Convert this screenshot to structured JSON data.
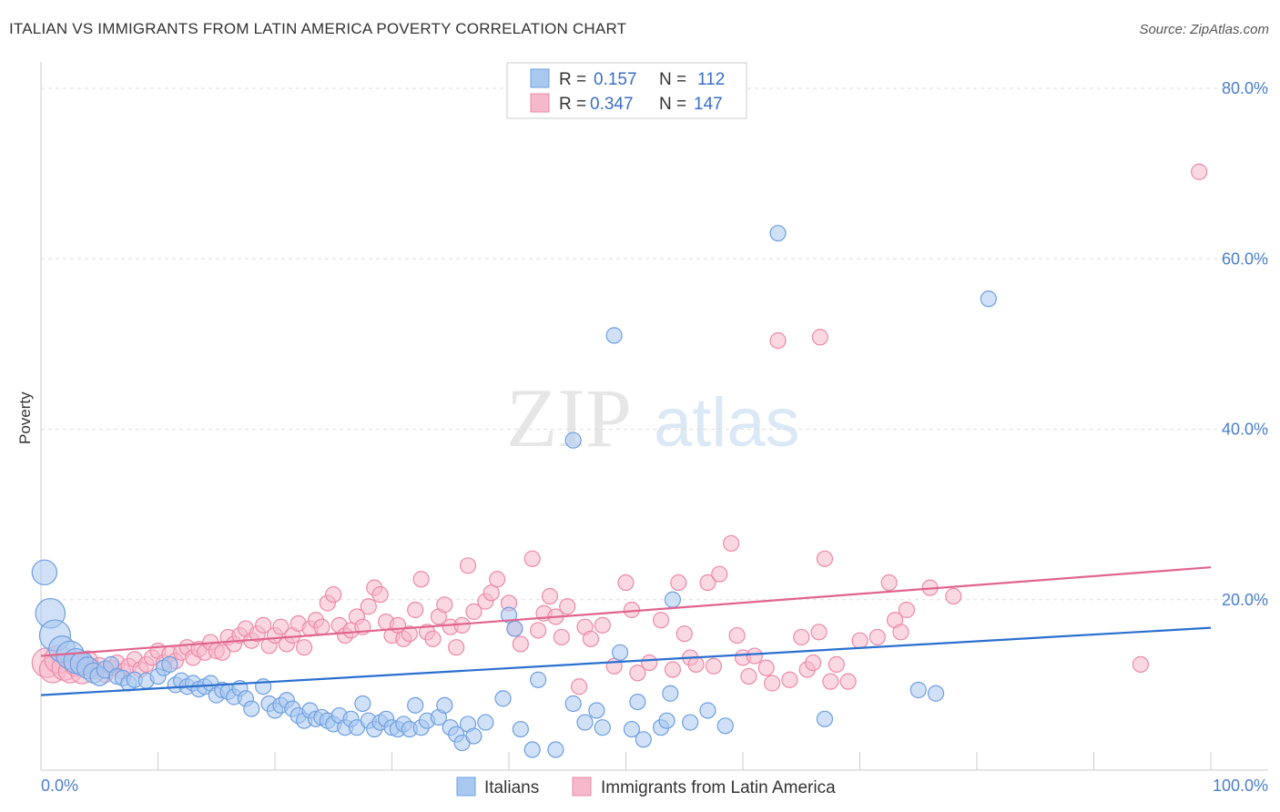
{
  "title": "ITALIAN VS IMMIGRANTS FROM LATIN AMERICA POVERTY CORRELATION CHART",
  "source": "Source: ZipAtlas.com",
  "watermark": {
    "zip": "ZIP",
    "atlas": "atlas"
  },
  "legend": {
    "series1": {
      "r_label": "R =",
      "r_value": "0.157",
      "n_label": "N =",
      "n_value": "112"
    },
    "series2": {
      "r_label": "R =",
      "r_value": "0.347",
      "n_label": "N =",
      "n_value": "147"
    }
  },
  "colors": {
    "blue_fill": "#a9c8f0",
    "blue_stroke": "#6d9fe0",
    "blue_line": "#2a6fcf",
    "pink_fill": "#f6b8cb",
    "pink_stroke": "#ec8aa8",
    "pink_line": "#e0648e",
    "grid": "#dddddd",
    "axis": "#cccccc",
    "tick_label": "#4a7fcf"
  },
  "chart_data": {
    "type": "scatter",
    "title": "ITALIAN VS IMMIGRANTS FROM LATIN AMERICA POVERTY CORRELATION CHART",
    "xlabel": "",
    "ylabel": "Poverty",
    "xlim": [
      0,
      100
    ],
    "ylim": [
      0,
      80
    ],
    "x_tick_labels": [
      "0.0%",
      "100.0%"
    ],
    "y_ticks": [
      20,
      40,
      60,
      80
    ],
    "y_tick_labels": [
      "20.0%",
      "40.0%",
      "60.0%",
      "80.0%"
    ],
    "grid": true,
    "legend_position": "top-center",
    "series": [
      {
        "name": "Italians",
        "color": "#a9c8f0",
        "trend": {
          "x": [
            0,
            100
          ],
          "y": [
            8.8,
            16.7
          ]
        },
        "points": [
          [
            0.3,
            23.2,
            1.6
          ],
          [
            0.8,
            18.4,
            1.9
          ],
          [
            1.2,
            15.8,
            2.0
          ],
          [
            1.8,
            14.2,
            1.7
          ],
          [
            2.5,
            13.5,
            1.8
          ],
          [
            3.0,
            12.8,
            1.6
          ],
          [
            3.5,
            12.5,
            1.5
          ],
          [
            4.0,
            12.0,
            1.4
          ],
          [
            4.5,
            11.4,
            1.3
          ],
          [
            5.0,
            11.0,
            1.2
          ],
          [
            5.5,
            11.8,
            1.1
          ],
          [
            6.0,
            12.4,
            1.0
          ],
          [
            6.5,
            11.0,
            1.0
          ],
          [
            7.0,
            10.8,
            1.0
          ],
          [
            7.5,
            10.2,
            1.0
          ],
          [
            8.0,
            10.6,
            1.0
          ],
          [
            9.0,
            10.5,
            1.0
          ],
          [
            10.0,
            11.0,
            1.0
          ],
          [
            10.5,
            12.0,
            1.0
          ],
          [
            11.0,
            12.4,
            1.0
          ],
          [
            11.5,
            10.0,
            1.0
          ],
          [
            12.0,
            10.5,
            1.0
          ],
          [
            12.5,
            9.8,
            1.0
          ],
          [
            13.0,
            10.2,
            1.0
          ],
          [
            13.5,
            9.5,
            1.0
          ],
          [
            14.0,
            9.8,
            1.0
          ],
          [
            14.5,
            10.2,
            1.0
          ],
          [
            15.0,
            8.8,
            1.0
          ],
          [
            15.5,
            9.4,
            1.0
          ],
          [
            16.0,
            9.2,
            1.0
          ],
          [
            16.5,
            8.6,
            1.0
          ],
          [
            17.0,
            9.6,
            1.0
          ],
          [
            17.5,
            8.4,
            1.0
          ],
          [
            18.0,
            7.2,
            1.0
          ],
          [
            19.0,
            9.8,
            1.0
          ],
          [
            19.5,
            7.8,
            1.0
          ],
          [
            20.0,
            7.0,
            1.0
          ],
          [
            20.5,
            7.6,
            1.0
          ],
          [
            21.0,
            8.2,
            1.0
          ],
          [
            21.5,
            7.2,
            1.0
          ],
          [
            22.0,
            6.4,
            1.0
          ],
          [
            22.5,
            5.8,
            1.0
          ],
          [
            23.0,
            7.0,
            1.0
          ],
          [
            23.5,
            6.0,
            1.0
          ],
          [
            24.0,
            6.2,
            1.0
          ],
          [
            24.5,
            5.8,
            1.0
          ],
          [
            25.0,
            5.4,
            1.0
          ],
          [
            25.5,
            6.4,
            1.0
          ],
          [
            26.0,
            5.0,
            1.0
          ],
          [
            26.5,
            6.0,
            1.0
          ],
          [
            27.0,
            5.0,
            1.0
          ],
          [
            27.5,
            7.8,
            1.0
          ],
          [
            28.0,
            5.8,
            1.0
          ],
          [
            28.5,
            4.8,
            1.0
          ],
          [
            29.0,
            5.6,
            1.0
          ],
          [
            29.5,
            6.0,
            1.0
          ],
          [
            30.0,
            5.0,
            1.0
          ],
          [
            30.5,
            4.8,
            1.0
          ],
          [
            31.0,
            5.4,
            1.0
          ],
          [
            31.5,
            4.8,
            1.0
          ],
          [
            32.0,
            7.6,
            1.0
          ],
          [
            32.5,
            5.0,
            1.0
          ],
          [
            33.0,
            5.8,
            1.0
          ],
          [
            34.0,
            6.2,
            1.0
          ],
          [
            34.5,
            7.6,
            1.0
          ],
          [
            35.0,
            5.0,
            1.0
          ],
          [
            35.5,
            4.2,
            1.0
          ],
          [
            36.0,
            3.2,
            1.0
          ],
          [
            36.5,
            5.4,
            1.0
          ],
          [
            37.0,
            4.0,
            1.0
          ],
          [
            38.0,
            5.6,
            1.0
          ],
          [
            39.5,
            8.4,
            1.0
          ],
          [
            40.0,
            18.2,
            1.0
          ],
          [
            40.5,
            16.6,
            1.0
          ],
          [
            41.0,
            4.8,
            1.0
          ],
          [
            42.0,
            2.4,
            1.0
          ],
          [
            42.5,
            10.6,
            1.0
          ],
          [
            44.0,
            2.4,
            1.0
          ],
          [
            45.5,
            7.8,
            1.0
          ],
          [
            46.5,
            5.6,
            1.0
          ],
          [
            47.5,
            7.0,
            1.0
          ],
          [
            48.0,
            5.0,
            1.0
          ],
          [
            49.0,
            51.0,
            1.0
          ],
          [
            49.5,
            13.8,
            1.0
          ],
          [
            50.5,
            4.8,
            1.0
          ],
          [
            51.0,
            8.0,
            1.0
          ],
          [
            51.5,
            3.6,
            1.0
          ],
          [
            53.0,
            5.0,
            1.0
          ],
          [
            53.5,
            5.8,
            1.0
          ],
          [
            53.8,
            9.0,
            1.0
          ],
          [
            54.0,
            20.0,
            1.0
          ],
          [
            55.5,
            5.6,
            1.0
          ],
          [
            57.0,
            7.0,
            1.0
          ],
          [
            58.5,
            5.2,
            1.0
          ],
          [
            63.0,
            63.0,
            1.0
          ],
          [
            67.0,
            6.0,
            1.0
          ],
          [
            81.0,
            55.3,
            1.0
          ],
          [
            75.0,
            9.4,
            1.0
          ],
          [
            76.5,
            9.0,
            1.0
          ],
          [
            45.5,
            38.7,
            1.0
          ]
        ]
      },
      {
        "name": "Immigrants from Latin America",
        "color": "#f6b8cb",
        "trend": {
          "x": [
            0,
            100
          ],
          "y": [
            13.4,
            23.8
          ]
        },
        "points": [
          [
            0.5,
            12.6,
            1.9
          ],
          [
            1.0,
            11.8,
            1.7
          ],
          [
            1.5,
            13.0,
            1.8
          ],
          [
            2.0,
            12.0,
            1.6
          ],
          [
            2.5,
            11.6,
            1.5
          ],
          [
            3.0,
            12.4,
            1.5
          ],
          [
            3.5,
            11.4,
            1.4
          ],
          [
            4.0,
            12.8,
            1.3
          ],
          [
            4.5,
            11.8,
            1.2
          ],
          [
            5.0,
            12.2,
            1.1
          ],
          [
            5.5,
            11.2,
            1.0
          ],
          [
            6.0,
            12.0,
            1.0
          ],
          [
            6.5,
            12.6,
            1.0
          ],
          [
            7.0,
            11.6,
            1.0
          ],
          [
            7.5,
            12.2,
            1.0
          ],
          [
            8.0,
            13.0,
            1.0
          ],
          [
            8.5,
            11.8,
            1.0
          ],
          [
            9.0,
            12.4,
            1.0
          ],
          [
            9.5,
            13.2,
            1.0
          ],
          [
            10.0,
            14.0,
            1.0
          ],
          [
            10.5,
            12.6,
            1.0
          ],
          [
            11.0,
            13.6,
            1.0
          ],
          [
            11.5,
            12.8,
            1.0
          ],
          [
            12.0,
            13.8,
            1.0
          ],
          [
            12.5,
            14.4,
            1.0
          ],
          [
            13.0,
            13.2,
            1.0
          ],
          [
            13.5,
            14.2,
            1.0
          ],
          [
            14.0,
            13.8,
            1.0
          ],
          [
            14.5,
            15.0,
            1.0
          ],
          [
            15.0,
            14.0,
            1.0
          ],
          [
            15.5,
            13.8,
            1.0
          ],
          [
            16.0,
            15.6,
            1.0
          ],
          [
            16.5,
            14.8,
            1.0
          ],
          [
            17.0,
            15.8,
            1.0
          ],
          [
            17.5,
            16.6,
            1.0
          ],
          [
            18.0,
            15.2,
            1.0
          ],
          [
            18.5,
            16.0,
            1.0
          ],
          [
            19.0,
            17.0,
            1.0
          ],
          [
            19.5,
            14.6,
            1.0
          ],
          [
            20.0,
            15.8,
            1.0
          ],
          [
            20.5,
            16.8,
            1.0
          ],
          [
            21.0,
            14.8,
            1.0
          ],
          [
            21.5,
            15.8,
            1.0
          ],
          [
            22.0,
            17.2,
            1.0
          ],
          [
            22.5,
            14.4,
            1.0
          ],
          [
            23.0,
            16.6,
            1.0
          ],
          [
            23.5,
            17.6,
            1.0
          ],
          [
            24.0,
            16.8,
            1.0
          ],
          [
            24.5,
            19.6,
            1.0
          ],
          [
            25.0,
            20.6,
            1.0
          ],
          [
            25.5,
            17.0,
            1.0
          ],
          [
            26.0,
            15.8,
            1.0
          ],
          [
            26.5,
            16.4,
            1.0
          ],
          [
            27.0,
            18.0,
            1.0
          ],
          [
            27.5,
            16.8,
            1.0
          ],
          [
            28.0,
            19.2,
            1.0
          ],
          [
            28.5,
            21.4,
            1.0
          ],
          [
            29.0,
            20.6,
            1.0
          ],
          [
            29.5,
            17.4,
            1.0
          ],
          [
            30.0,
            15.8,
            1.0
          ],
          [
            30.5,
            17.0,
            1.0
          ],
          [
            31.0,
            15.4,
            1.0
          ],
          [
            31.5,
            16.0,
            1.0
          ],
          [
            32.0,
            18.8,
            1.0
          ],
          [
            32.5,
            22.4,
            1.0
          ],
          [
            33.0,
            16.2,
            1.0
          ],
          [
            33.5,
            15.4,
            1.0
          ],
          [
            34.0,
            18.0,
            1.0
          ],
          [
            34.5,
            19.4,
            1.0
          ],
          [
            35.0,
            16.8,
            1.0
          ],
          [
            35.5,
            14.4,
            1.0
          ],
          [
            36.0,
            17.0,
            1.0
          ],
          [
            36.5,
            24.0,
            1.0
          ],
          [
            37.0,
            18.6,
            1.0
          ],
          [
            38.0,
            19.8,
            1.0
          ],
          [
            38.5,
            20.8,
            1.0
          ],
          [
            39.0,
            22.4,
            1.0
          ],
          [
            40.0,
            19.6,
            1.0
          ],
          [
            40.5,
            16.6,
            1.0
          ],
          [
            41.0,
            14.8,
            1.0
          ],
          [
            42.0,
            24.8,
            1.0
          ],
          [
            42.5,
            16.4,
            1.0
          ],
          [
            43.0,
            18.4,
            1.0
          ],
          [
            43.5,
            20.4,
            1.0
          ],
          [
            44.0,
            18.0,
            1.0
          ],
          [
            44.5,
            15.6,
            1.0
          ],
          [
            45.0,
            19.2,
            1.0
          ],
          [
            46.0,
            9.8,
            1.0
          ],
          [
            46.5,
            16.8,
            1.0
          ],
          [
            47.0,
            15.4,
            1.0
          ],
          [
            48.0,
            17.0,
            1.0
          ],
          [
            49.0,
            12.2,
            1.0
          ],
          [
            50.0,
            22.0,
            1.0
          ],
          [
            50.5,
            18.8,
            1.0
          ],
          [
            51.0,
            11.4,
            1.0
          ],
          [
            52.0,
            12.6,
            1.0
          ],
          [
            53.0,
            17.6,
            1.0
          ],
          [
            54.0,
            11.8,
            1.0
          ],
          [
            54.5,
            22.0,
            1.0
          ],
          [
            55.0,
            16.0,
            1.0
          ],
          [
            55.5,
            13.2,
            1.0
          ],
          [
            56.0,
            12.4,
            1.0
          ],
          [
            57.0,
            22.0,
            1.0
          ],
          [
            57.5,
            12.2,
            1.0
          ],
          [
            58.0,
            23.0,
            1.0
          ],
          [
            59.0,
            26.6,
            1.0
          ],
          [
            59.5,
            15.8,
            1.0
          ],
          [
            60.0,
            13.2,
            1.0
          ],
          [
            60.5,
            11.0,
            1.0
          ],
          [
            61.0,
            13.4,
            1.0
          ],
          [
            62.0,
            12.0,
            1.0
          ],
          [
            62.5,
            10.2,
            1.0
          ],
          [
            63.0,
            50.4,
            1.0
          ],
          [
            64.0,
            10.6,
            1.0
          ],
          [
            65.0,
            15.6,
            1.0
          ],
          [
            65.5,
            11.8,
            1.0
          ],
          [
            66.0,
            12.6,
            1.0
          ],
          [
            66.5,
            16.2,
            1.0
          ],
          [
            66.6,
            50.8,
            1.0
          ],
          [
            67.0,
            24.8,
            1.0
          ],
          [
            67.5,
            10.4,
            1.0
          ],
          [
            68.0,
            12.4,
            1.0
          ],
          [
            69.0,
            10.4,
            1.0
          ],
          [
            70.0,
            15.2,
            1.0
          ],
          [
            71.5,
            15.6,
            1.0
          ],
          [
            72.5,
            22.0,
            1.0
          ],
          [
            73.0,
            17.6,
            1.0
          ],
          [
            73.5,
            16.2,
            1.0
          ],
          [
            74.0,
            18.8,
            1.0
          ],
          [
            76.0,
            21.4,
            1.0
          ],
          [
            78.0,
            20.4,
            1.0
          ],
          [
            94.0,
            12.4,
            1.0
          ],
          [
            99.0,
            70.2,
            1.0
          ]
        ]
      }
    ]
  },
  "bottom_legend": [
    {
      "name": "Italians"
    },
    {
      "name": "Immigrants from Latin America"
    }
  ]
}
